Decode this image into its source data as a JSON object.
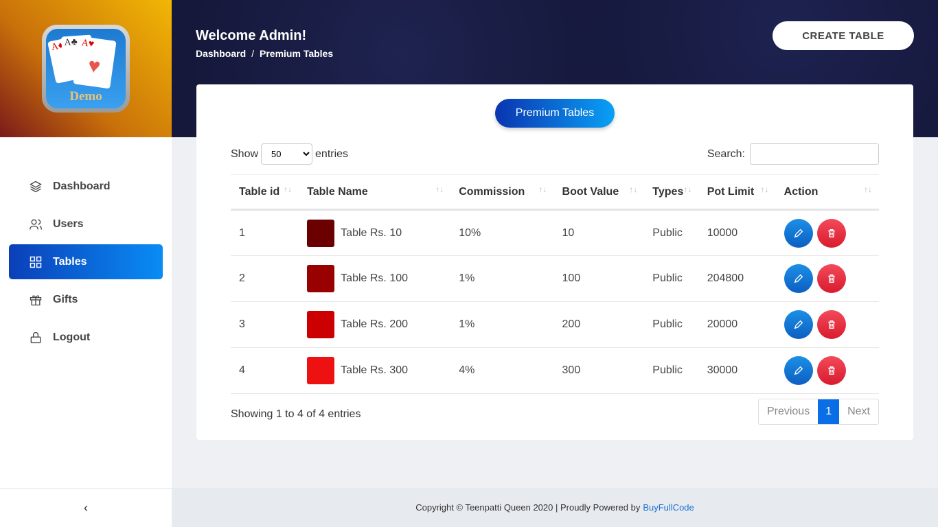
{
  "brand": {
    "logo_text": "Demo"
  },
  "sidebar": {
    "items": [
      {
        "label": "Dashboard",
        "icon": "layers-icon"
      },
      {
        "label": "Users",
        "icon": "users-icon"
      },
      {
        "label": "Tables",
        "icon": "grid-icon",
        "active": true
      },
      {
        "label": "Gifts",
        "icon": "gift-icon"
      },
      {
        "label": "Logout",
        "icon": "lock-icon"
      }
    ],
    "collapse": "‹"
  },
  "header": {
    "welcome": "Welcome Admin!",
    "breadcrumb": [
      "Dashboard",
      "Premium Tables"
    ],
    "separator": "/",
    "create_button": "CREATE TABLE"
  },
  "panel": {
    "title": "Premium Tables",
    "show_label": "Show",
    "entries_value": "50",
    "entries_label": "entries",
    "search_label": "Search:",
    "search_value": "",
    "columns": [
      "Table id",
      "Table Name",
      "Commission",
      "Boot Value",
      "Types",
      "Pot Limit",
      "Action"
    ],
    "rows": [
      {
        "id": "1",
        "name": "Table Rs. 10",
        "color": "#6b0000",
        "commission": "10%",
        "boot": "10",
        "type": "Public",
        "pot": "10000"
      },
      {
        "id": "2",
        "name": "Table Rs. 100",
        "color": "#990000",
        "commission": "1%",
        "boot": "100",
        "type": "Public",
        "pot": "204800"
      },
      {
        "id": "3",
        "name": "Table Rs. 200",
        "color": "#cc0000",
        "commission": "1%",
        "boot": "200",
        "type": "Public",
        "pot": "20000"
      },
      {
        "id": "4",
        "name": "Table Rs. 300",
        "color": "#ee1111",
        "commission": "4%",
        "boot": "300",
        "type": "Public",
        "pot": "30000"
      }
    ],
    "info": "Showing 1 to 4 of 4 entries",
    "pager": {
      "prev": "Previous",
      "page": "1",
      "next": "Next"
    }
  },
  "footer": {
    "text": "Copyright © Teenpatti Queen 2020 | Proudly Powered by",
    "link": "BuyFullCode"
  }
}
